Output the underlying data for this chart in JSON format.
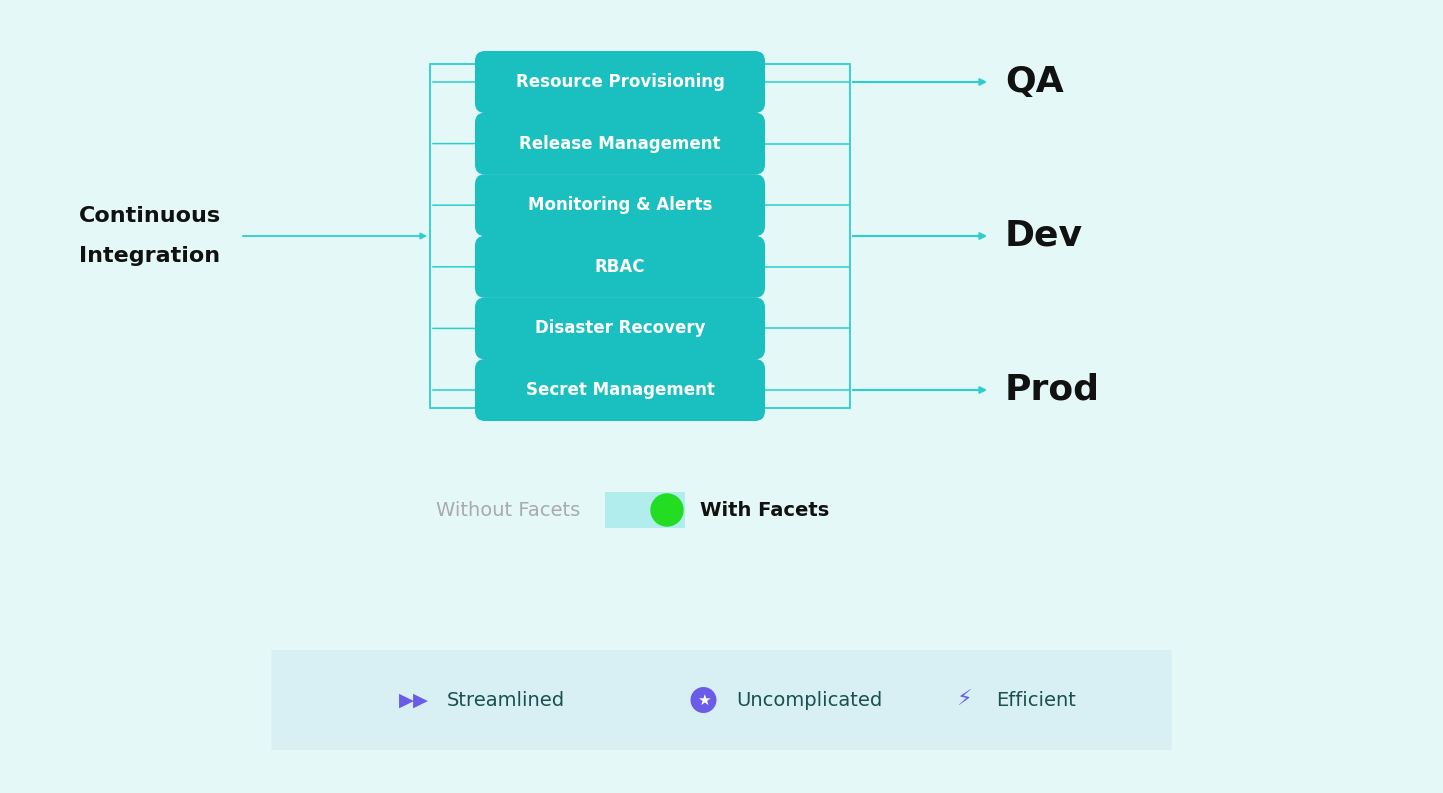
{
  "bg_color": "#e5f8f8",
  "teal_line": "#2ECECE",
  "teal_box": "#1ABFBF",
  "dark_text": "#111111",
  "gray_text": "#aaaaaa",
  "purple": "#6B5CE7",
  "teal_text": "#1a5050",
  "ci_label": [
    "Continuous",
    "Integration"
  ],
  "boxes": [
    "Resource Provisioning",
    "Release Management",
    "Monitoring & Alerts",
    "RBAC",
    "Disaster Recovery",
    "Secret Management"
  ],
  "outputs": [
    "QA",
    "Dev",
    "Prod"
  ],
  "toggle_left": "Without Facets",
  "toggle_right": "With Facets",
  "bottom_items": [
    "Streamlined",
    "Uncomplicated",
    "Efficient"
  ],
  "bottom_bg": "#d8f0f4",
  "figsize": [
    14.43,
    7.93
  ],
  "dpi": 100
}
